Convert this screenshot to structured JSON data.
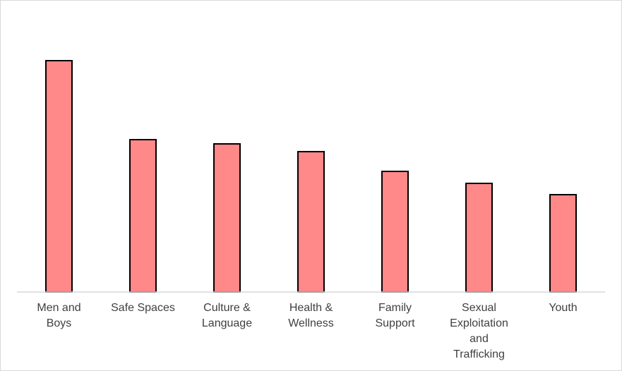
{
  "chart_data": {
    "type": "bar",
    "categories": [
      "Men and Boys",
      "Safe Spaces",
      "Culture & Language",
      "Health & Wellness",
      "Family Support",
      "Sexual Exploitation and Trafficking",
      "Youth"
    ],
    "values": [
      328,
      216,
      210,
      199,
      171,
      154,
      138
    ],
    "color": "#ff8888",
    "ylim": [
      0,
      393
    ]
  }
}
